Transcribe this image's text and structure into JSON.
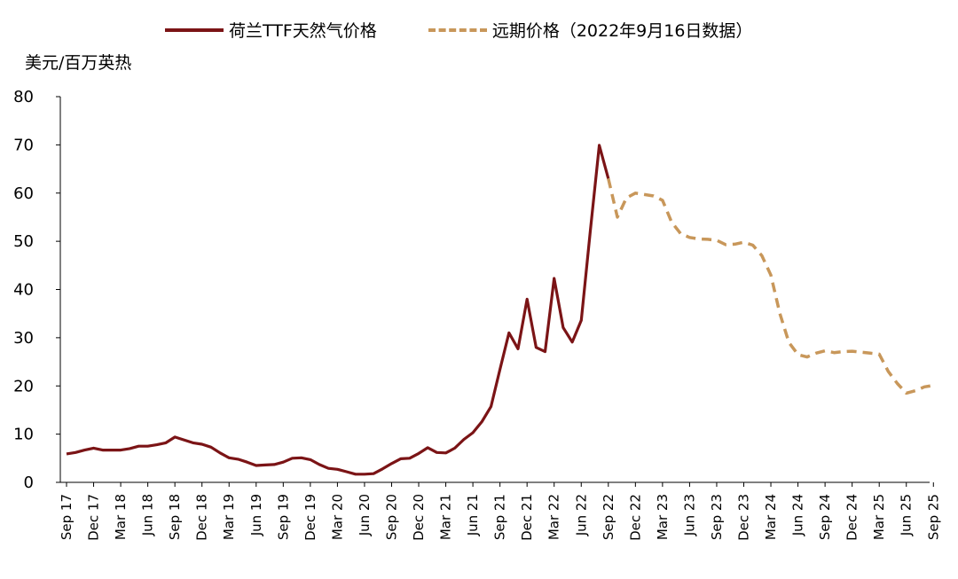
{
  "unit_label": "美元/百万英热",
  "colors": {
    "historical": "#7b1416",
    "forward": "#c8975a",
    "axis": "#000000"
  },
  "chart_data": {
    "type": "line",
    "title": "",
    "xlabel": "",
    "ylabel": "美元/百万英热",
    "ylim": [
      0,
      80
    ],
    "yticks": [
      0,
      10,
      20,
      30,
      40,
      50,
      60,
      70,
      80
    ],
    "grid": false,
    "legend_position": "top",
    "x_tick_labels": [
      "Sep 17",
      "Dec 17",
      "Mar 18",
      "Jun 18",
      "Sep 18",
      "Dec 18",
      "Mar 19",
      "Jun 19",
      "Sep 19",
      "Dec 19",
      "Mar 20",
      "Jun 20",
      "Sep 20",
      "Dec 20",
      "Mar 21",
      "Jun 21",
      "Sep 21",
      "Dec 21",
      "Mar 22",
      "Jun 22",
      "Sep 22",
      "Dec 22",
      "Mar 23",
      "Jun 23",
      "Sep 23",
      "Dec 23",
      "Mar 24",
      "Jun 24",
      "Sep 24",
      "Dec 24",
      "Mar 25",
      "Jun 25",
      "Sep 25"
    ],
    "series": [
      {
        "name": "荷兰TTF天然气价格",
        "style": "solid",
        "x": [
          "2017-09",
          "2017-10",
          "2017-11",
          "2017-12",
          "2018-01",
          "2018-02",
          "2018-03",
          "2018-04",
          "2018-05",
          "2018-06",
          "2018-07",
          "2018-08",
          "2018-09",
          "2018-10",
          "2018-11",
          "2018-12",
          "2019-01",
          "2019-02",
          "2019-03",
          "2019-04",
          "2019-05",
          "2019-06",
          "2019-07",
          "2019-08",
          "2019-09",
          "2019-10",
          "2019-11",
          "2019-12",
          "2020-01",
          "2020-02",
          "2020-03",
          "2020-04",
          "2020-05",
          "2020-06",
          "2020-07",
          "2020-08",
          "2020-09",
          "2020-10",
          "2020-11",
          "2020-12",
          "2021-01",
          "2021-02",
          "2021-03",
          "2021-04",
          "2021-05",
          "2021-06",
          "2021-07",
          "2021-08",
          "2021-09",
          "2021-10",
          "2021-11",
          "2021-12",
          "2022-01",
          "2022-02",
          "2022-03",
          "2022-04",
          "2022-05",
          "2022-06",
          "2022-07",
          "2022-08",
          "2022-09"
        ],
        "values": [
          5.9,
          6.2,
          6.7,
          7.1,
          6.7,
          6.7,
          6.7,
          7.0,
          7.5,
          7.5,
          7.8,
          8.2,
          9.4,
          8.8,
          8.2,
          7.9,
          7.3,
          6.1,
          5.1,
          4.8,
          4.2,
          3.5,
          3.6,
          3.7,
          4.2,
          5.0,
          5.1,
          4.7,
          3.7,
          2.9,
          2.7,
          2.2,
          1.7,
          1.7,
          1.8,
          2.8,
          3.9,
          4.9,
          5.0,
          6.0,
          7.2,
          6.2,
          6.1,
          7.1,
          8.9,
          10.3,
          12.6,
          15.7,
          23.4,
          31.0,
          27.7,
          38.0,
          28.0,
          27.1,
          42.3,
          32.1,
          29.1,
          33.6,
          52.0,
          69.9,
          63.0
        ]
      },
      {
        "name": "远期价格（2022年9月16日数据）",
        "style": "dashed",
        "x": [
          "2022-09",
          "2022-10",
          "2022-11",
          "2022-12",
          "2023-01",
          "2023-02",
          "2023-03",
          "2023-04",
          "2023-05",
          "2023-06",
          "2023-07",
          "2023-08",
          "2023-09",
          "2023-10",
          "2023-11",
          "2023-12",
          "2024-01",
          "2024-02",
          "2024-03",
          "2024-04",
          "2024-05",
          "2024-06",
          "2024-07",
          "2024-08",
          "2024-09",
          "2024-10",
          "2024-11",
          "2024-12",
          "2025-01",
          "2025-02",
          "2025-03",
          "2025-04",
          "2025-05",
          "2025-06",
          "2025-07",
          "2025-08",
          "2025-09"
        ],
        "values": [
          63.0,
          55.0,
          59.0,
          60.0,
          59.7,
          59.4,
          58.5,
          54.0,
          51.6,
          50.8,
          50.5,
          50.4,
          50.2,
          49.3,
          49.4,
          49.8,
          49.2,
          47.0,
          43.0,
          35.0,
          29.0,
          26.5,
          26.0,
          26.8,
          27.3,
          26.9,
          27.1,
          27.2,
          27.0,
          26.8,
          26.6,
          23.0,
          20.5,
          18.5,
          19.0,
          19.8,
          20.1
        ]
      }
    ]
  }
}
